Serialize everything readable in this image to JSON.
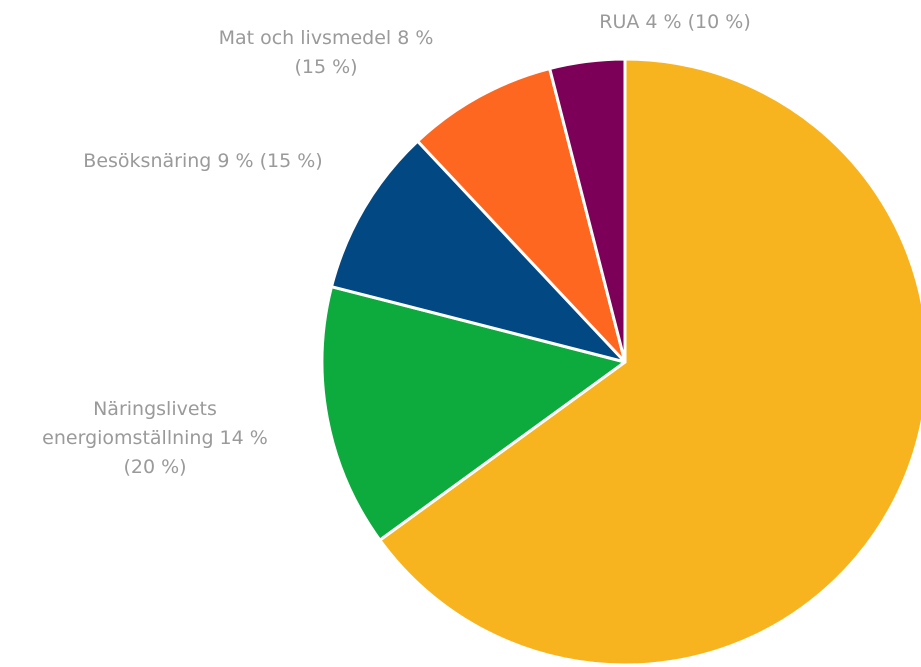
{
  "chart_data": {
    "type": "pie",
    "title": "",
    "start_angle_deg": 0,
    "direction": "clockwise",
    "slices": [
      {
        "name": "",
        "value": 65,
        "color": "#F8B41E",
        "label": []
      },
      {
        "name": "Näringslivets energiomställning",
        "value": 14,
        "color": "#0DAA3D",
        "label": [
          "Näringslivets",
          "energiomställning 14 %",
          "(20 %)"
        ]
      },
      {
        "name": "Besöksnäring",
        "value": 9,
        "color": "#024883",
        "label": [
          "Besöksnäring 9 % (15 %)"
        ]
      },
      {
        "name": "Mat och livsmedel",
        "value": 8,
        "color": "#FD6720",
        "label": [
          "Mat och livsmedel 8 %",
          "(15 %)"
        ]
      },
      {
        "name": "RUA",
        "value": 4,
        "color": "#7D0058",
        "label": [
          "RUA 4 % (10 %)"
        ]
      }
    ]
  }
}
